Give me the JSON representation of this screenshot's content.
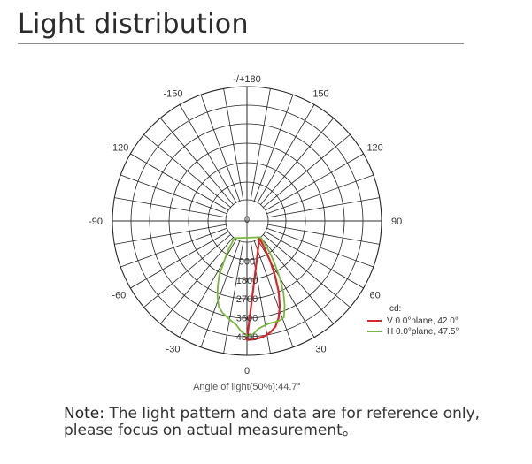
{
  "header": {
    "title": "Light distribution"
  },
  "note": {
    "lead": "Note:",
    "line1": " The light pattern and data are for reference only,",
    "line2": "please focus on actual measurement。"
  },
  "chart_data": {
    "type": "polar",
    "unit_label": "cd:",
    "caption": "Angle of light(50%):44.7°",
    "angle_labels": [
      {
        "angle": 180,
        "text": "-/+180"
      },
      {
        "angle": -150,
        "text": "-150"
      },
      {
        "angle": 150,
        "text": "150"
      },
      {
        "angle": -120,
        "text": "-120"
      },
      {
        "angle": 120,
        "text": "120"
      },
      {
        "angle": -90,
        "text": "-90"
      },
      {
        "angle": 90,
        "text": "90"
      },
      {
        "angle": -60,
        "text": "-60"
      },
      {
        "angle": 60,
        "text": "60"
      },
      {
        "angle": -30,
        "text": "-30"
      },
      {
        "angle": 30,
        "text": "30"
      },
      {
        "angle": 0,
        "text": "0"
      }
    ],
    "radial_ticks": [
      0,
      900,
      1800,
      2700,
      3600,
      4500
    ],
    "radial_tick_labels": [
      "0",
      "900",
      "1800",
      "2700",
      "3600",
      "4500"
    ],
    "rmax": 4500,
    "series": [
      {
        "name": "V 0.0°plane,  42.0°",
        "color": "#d9262a",
        "points": [
          [
            0,
            4650
          ],
          [
            3,
            4640
          ],
          [
            6,
            4600
          ],
          [
            9,
            4520
          ],
          [
            12,
            4400
          ],
          [
            15,
            4200
          ],
          [
            18,
            3850
          ],
          [
            21,
            3350
          ],
          [
            24,
            2700
          ],
          [
            27,
            1950
          ],
          [
            30,
            1200
          ],
          [
            33,
            500
          ],
          [
            36,
            0
          ]
        ]
      },
      {
        "name": "H 0.0°plane,  47.5°",
        "color": "#7ab83c",
        "points": [
          [
            -36,
            0
          ],
          [
            -33,
            600
          ],
          [
            -30,
            1100
          ],
          [
            -27,
            1900
          ],
          [
            -24,
            2400
          ],
          [
            -21,
            2900
          ],
          [
            -18,
            3300
          ],
          [
            -15,
            3500
          ],
          [
            -12,
            3650
          ],
          [
            -9,
            3800
          ],
          [
            -6,
            3950
          ],
          [
            -3,
            4250
          ],
          [
            0,
            4450
          ],
          [
            3,
            4400
          ],
          [
            6,
            4150
          ],
          [
            9,
            4050
          ],
          [
            12,
            3980
          ],
          [
            15,
            3980
          ],
          [
            18,
            3980
          ],
          [
            21,
            3900
          ],
          [
            24,
            3400
          ],
          [
            27,
            2800
          ],
          [
            30,
            2100
          ],
          [
            33,
            1400
          ],
          [
            36,
            800
          ],
          [
            38,
            300
          ],
          [
            40,
            0
          ]
        ]
      }
    ]
  }
}
